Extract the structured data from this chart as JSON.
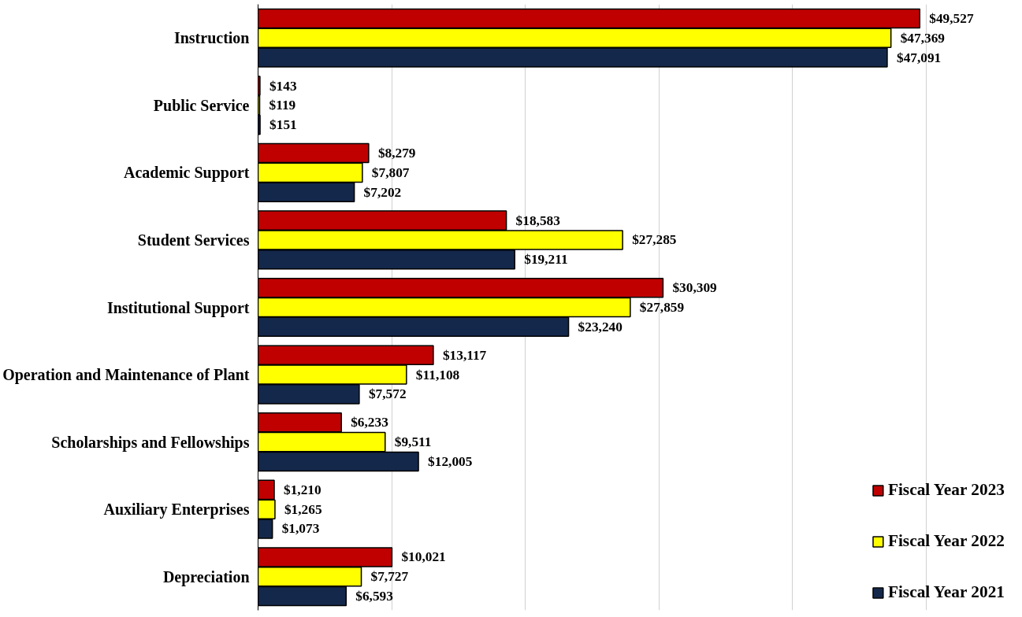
{
  "chart_data": {
    "type": "bar",
    "orientation": "horizontal",
    "categories": [
      "Instruction",
      "Public Service",
      "Academic Support",
      "Student Services",
      "Institutional Support",
      "Operation and Maintenance of Plant",
      "Scholarships and Fellowships",
      "Auxiliary Enterprises",
      "Depreciation"
    ],
    "series": [
      {
        "name": "Fiscal Year 2023",
        "color": "#c00000",
        "values": [
          49527,
          143,
          8279,
          18583,
          30309,
          13117,
          6233,
          1210,
          10021
        ],
        "value_labels": [
          "$49,527",
          "$143",
          "$8,279",
          "$18,583",
          "$30,309",
          "$13,117",
          "$6,233",
          "$1,210",
          "$10,021"
        ]
      },
      {
        "name": "Fiscal Year 2022",
        "color": "#ffff00",
        "values": [
          47369,
          119,
          7807,
          27285,
          27859,
          11108,
          9511,
          1265,
          7727
        ],
        "value_labels": [
          "$47,369",
          "$119",
          "$7,807",
          "$27,285",
          "$27,859",
          "$11,108",
          "$9,511",
          "$1,265",
          "$7,727"
        ]
      },
      {
        "name": "Fiscal Year 2021",
        "color": "#14284b",
        "values": [
          47091,
          151,
          7202,
          19211,
          23240,
          7572,
          12005,
          1073,
          6593
        ],
        "value_labels": [
          "$47,091",
          "$151",
          "$7,202",
          "$19,211",
          "$23,240",
          "$7,572",
          "$12,005",
          "$1,073",
          "$6,593"
        ]
      }
    ],
    "xticks": [
      {
        "value": 0,
        "label": null
      },
      {
        "value": 10000,
        "label": null
      },
      {
        "value": 20000,
        "label": null
      },
      {
        "value": 30000,
        "label": null
      },
      {
        "value": 40000,
        "label": null
      },
      {
        "value": 50000,
        "label": null
      }
    ],
    "grid": "x",
    "legend": "bottom right",
    "tick_labels": "y"
  }
}
